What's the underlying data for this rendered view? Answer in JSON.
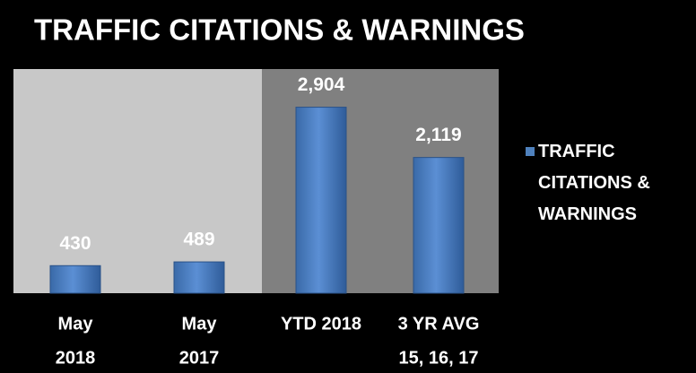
{
  "chart_data": {
    "type": "bar",
    "title": "TRAFFIC CITATIONS & WARNINGS",
    "categories": [
      [
        "May",
        "2018"
      ],
      [
        "May",
        "2017"
      ],
      [
        "YTD 2018"
      ],
      [
        "3 YR AVG",
        "15, 16, 17"
      ]
    ],
    "series": [
      {
        "name": "TRAFFIC CITATIONS & WARNINGS",
        "color": "#4f81bd",
        "values": [
          430,
          489,
          2904,
          2119
        ],
        "value_labels": [
          "430",
          "489",
          "2,904",
          "2,119"
        ]
      }
    ],
    "ylim": [
      0,
      3500
    ],
    "legend": "right"
  }
}
